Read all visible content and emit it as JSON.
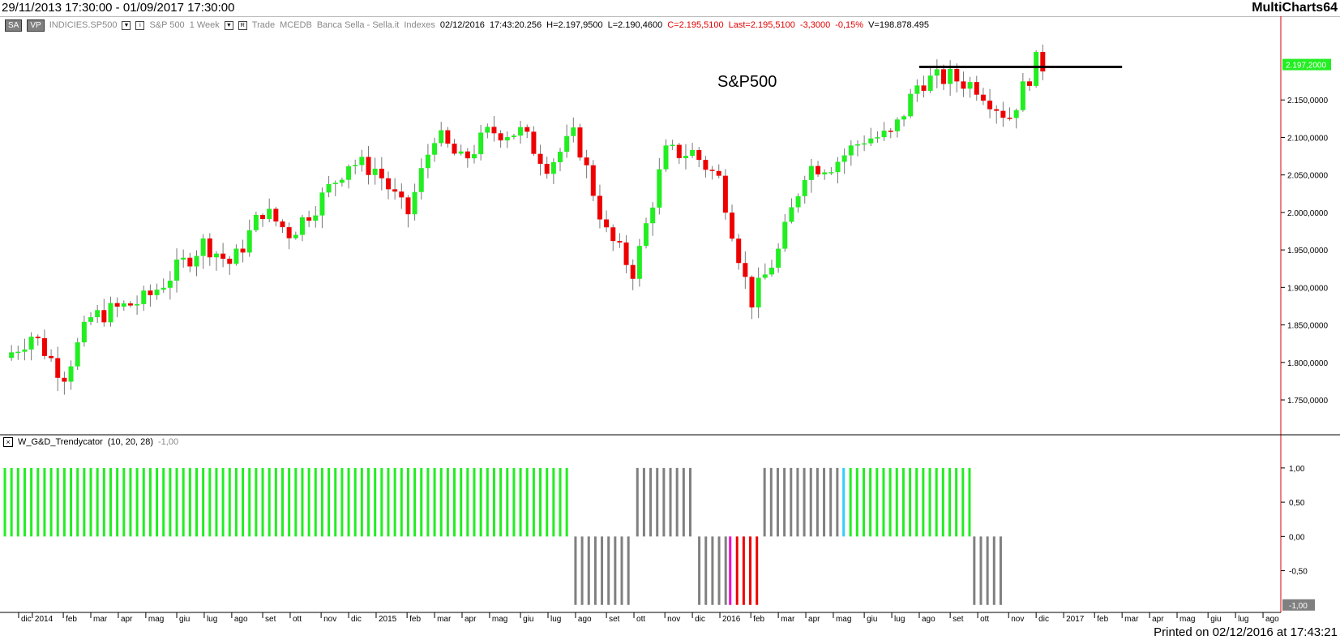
{
  "window": {
    "range": "29/11/2013 17:30:00 - 01/09/2017 17:30:00",
    "brand": "MultiCharts64",
    "printed": "Printed on 02/12/2016 at 17:43:21"
  },
  "infobar": {
    "mode1": "SA",
    "mode2": "VP",
    "symbol": "INDICIES.SP500",
    "description": "S&P 500",
    "resolution": "1 Week",
    "data_type": "Trade",
    "exchange": "MCEDB",
    "source": "Banca Sella - Sella.it",
    "category": "Indexes",
    "datetime": "02/12/2016",
    "time": "17:43:20.256",
    "high": "H=2.197,9500",
    "low": "L=2.190,4600",
    "close": "C=2.195,5100",
    "last": "Last=2.195,5100",
    "change": "-3,3000",
    "change_pct": "-0,15%",
    "volume": "V=198.878.495"
  },
  "indicator": {
    "name": "W_G&D_Trendycator",
    "params": "(10, 20, 28)",
    "value": "-1,00"
  },
  "chart_data": [
    {
      "type": "candlestick",
      "title": "S&P500",
      "ylim": [
        1710,
        2240
      ],
      "y_ticks": [
        "1.750,0000",
        "1.800,0000",
        "1.850,0000",
        "1.900,0000",
        "1.950,0000",
        "2.000,0000",
        "2.050,0000",
        "2.100,0000",
        "2.150,0000"
      ],
      "last_price_label": "2.197,2000",
      "last_price": 2197.2,
      "colors": {
        "up": "#22ee22",
        "down": "#ee0000",
        "trendline": "#000000"
      },
      "trendline": {
        "start_week": 2016.58,
        "end_week": 2017.17,
        "value": 2194
      },
      "x_ticks": [
        {
          "label": "dic",
          "t": 2013.96
        },
        {
          "label": "2014",
          "t": 2014.0
        },
        {
          "label": "feb",
          "t": 2014.09
        },
        {
          "label": "mar",
          "t": 2014.17
        },
        {
          "label": "apr",
          "t": 2014.25
        },
        {
          "label": "mag",
          "t": 2014.33
        },
        {
          "label": "giu",
          "t": 2014.42
        },
        {
          "label": "lug",
          "t": 2014.5
        },
        {
          "label": "ago",
          "t": 2014.58
        },
        {
          "label": "set",
          "t": 2014.67
        },
        {
          "label": "ott",
          "t": 2014.75
        },
        {
          "label": "nov",
          "t": 2014.84
        },
        {
          "label": "dic",
          "t": 2014.92
        },
        {
          "label": "2015",
          "t": 2015.0
        },
        {
          "label": "feb",
          "t": 2015.09
        },
        {
          "label": "mar",
          "t": 2015.17
        },
        {
          "label": "apr",
          "t": 2015.25
        },
        {
          "label": "mag",
          "t": 2015.33
        },
        {
          "label": "giu",
          "t": 2015.42
        },
        {
          "label": "lug",
          "t": 2015.5
        },
        {
          "label": "ago",
          "t": 2015.58
        },
        {
          "label": "set",
          "t": 2015.67
        },
        {
          "label": "ott",
          "t": 2015.75
        },
        {
          "label": "nov",
          "t": 2015.84
        },
        {
          "label": "dic",
          "t": 2015.92
        },
        {
          "label": "2016",
          "t": 2016.0
        },
        {
          "label": "feb",
          "t": 2016.09
        },
        {
          "label": "mar",
          "t": 2016.17
        },
        {
          "label": "apr",
          "t": 2016.25
        },
        {
          "label": "mag",
          "t": 2016.33
        },
        {
          "label": "giu",
          "t": 2016.42
        },
        {
          "label": "lug",
          "t": 2016.5
        },
        {
          "label": "ago",
          "t": 2016.58
        },
        {
          "label": "set",
          "t": 2016.67
        },
        {
          "label": "ott",
          "t": 2016.75
        },
        {
          "label": "nov",
          "t": 2016.84
        },
        {
          "label": "dic",
          "t": 2016.92
        },
        {
          "label": "2017",
          "t": 2017.0
        },
        {
          "label": "feb",
          "t": 2017.09
        },
        {
          "label": "mar",
          "t": 2017.17
        },
        {
          "label": "apr",
          "t": 2017.25
        },
        {
          "label": "mag",
          "t": 2017.33
        },
        {
          "label": "giu",
          "t": 2017.42
        },
        {
          "label": "lug",
          "t": 2017.5
        },
        {
          "label": "ago",
          "t": 2017.58
        }
      ],
      "monthly_close": [
        {
          "t": 2013.92,
          "c": 1806
        },
        {
          "t": 2014.0,
          "c": 1838
        },
        {
          "t": 2014.09,
          "c": 1782
        },
        {
          "t": 2014.17,
          "c": 1859
        },
        {
          "t": 2014.25,
          "c": 1872
        },
        {
          "t": 2014.33,
          "c": 1884
        },
        {
          "t": 2014.42,
          "c": 1924
        },
        {
          "t": 2014.5,
          "c": 1960
        },
        {
          "t": 2014.58,
          "c": 1930
        },
        {
          "t": 2014.67,
          "c": 2003
        },
        {
          "t": 2014.75,
          "c": 1972
        },
        {
          "t": 2014.84,
          "c": 2018
        },
        {
          "t": 2014.92,
          "c": 2067
        },
        {
          "t": 2015.0,
          "c": 2058
        },
        {
          "t": 2015.09,
          "c": 1995
        },
        {
          "t": 2015.17,
          "c": 2105
        },
        {
          "t": 2015.25,
          "c": 2067
        },
        {
          "t": 2015.33,
          "c": 2108
        },
        {
          "t": 2015.42,
          "c": 2107
        },
        {
          "t": 2015.5,
          "c": 2063
        },
        {
          "t": 2015.58,
          "c": 2104
        },
        {
          "t": 2015.67,
          "c": 1972
        },
        {
          "t": 2015.75,
          "c": 1920
        },
        {
          "t": 2015.84,
          "c": 2079
        },
        {
          "t": 2015.92,
          "c": 2080
        },
        {
          "t": 2016.0,
          "c": 2043
        },
        {
          "t": 2016.09,
          "c": 1880
        },
        {
          "t": 2016.17,
          "c": 1948
        },
        {
          "t": 2016.25,
          "c": 2060
        },
        {
          "t": 2016.33,
          "c": 2065
        },
        {
          "t": 2016.42,
          "c": 2099
        },
        {
          "t": 2016.5,
          "c": 2102
        },
        {
          "t": 2016.58,
          "c": 2175
        },
        {
          "t": 2016.67,
          "c": 2180
        },
        {
          "t": 2016.75,
          "c": 2168
        },
        {
          "t": 2016.84,
          "c": 2126
        },
        {
          "t": 2016.92,
          "c": 2200
        },
        {
          "t": 2016.94,
          "c": 2195.5
        }
      ]
    },
    {
      "type": "bar",
      "title": "W_G&D_Trendycator",
      "ylim": [
        -1.05,
        1.2
      ],
      "y_ticks": [
        "1,00",
        "0,50",
        "0,00",
        "-0,50"
      ],
      "last_value_label": "-1,00",
      "colors": {
        "bull": "#22ee22",
        "bear_red": "#ee0000",
        "bear_magenta": "#ee00cc",
        "neutral": "#808080",
        "cyan": "#33ccff"
      },
      "segments": [
        {
          "from": 2013.92,
          "to": 2015.57,
          "value": 1,
          "color": "bull"
        },
        {
          "from": 2015.58,
          "to": 2015.75,
          "value": -1,
          "color": "neutral"
        },
        {
          "from": 2015.76,
          "to": 2015.93,
          "value": 1,
          "color": "neutral"
        },
        {
          "from": 2015.94,
          "to": 2016.02,
          "value": -1,
          "color": "neutral"
        },
        {
          "from": 2016.03,
          "to": 2016.04,
          "value": -1,
          "color": "bear_magenta"
        },
        {
          "from": 2016.05,
          "to": 2016.12,
          "value": -1,
          "color": "bear_red"
        },
        {
          "from": 2016.13,
          "to": 2016.35,
          "value": 1,
          "color": "neutral"
        },
        {
          "from": 2016.36,
          "to": 2016.37,
          "value": 1,
          "color": "cyan"
        },
        {
          "from": 2016.38,
          "to": 2016.73,
          "value": 1,
          "color": "bull"
        },
        {
          "from": 2016.74,
          "to": 2016.83,
          "value": -1,
          "color": "neutral"
        }
      ]
    }
  ]
}
